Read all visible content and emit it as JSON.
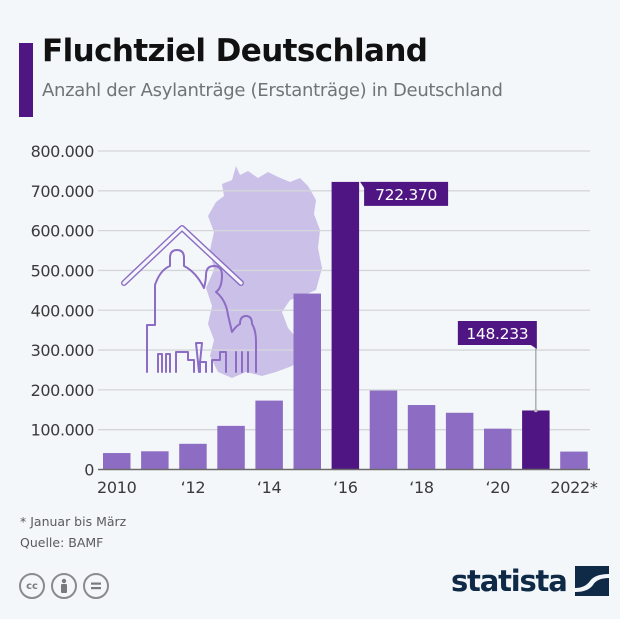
{
  "header": {
    "title": "Fluchtziel Deutschland",
    "subtitle": "Anzahl der Asylanträge (Erstanträge) in Deutschland"
  },
  "chart_data": {
    "type": "bar",
    "title": "Fluchtziel Deutschland",
    "subtitle": "Anzahl der Asylanträge (Erstanträge) in Deutschland",
    "xlabel": "",
    "ylabel": "",
    "ylim": [
      0,
      800000
    ],
    "grid": true,
    "yticks": [
      0,
      100000,
      200000,
      300000,
      400000,
      500000,
      600000,
      700000,
      800000
    ],
    "ytick_labels": [
      "0",
      "100.000",
      "200.000",
      "300.000",
      "400.000",
      "500.000",
      "600.000",
      "700.000",
      "800.000"
    ],
    "categories": [
      "2010",
      "2011",
      "2012",
      "2013",
      "2014",
      "2015",
      "2016",
      "2017",
      "2018",
      "2019",
      "2020",
      "2021",
      "2022"
    ],
    "xtick_labels": [
      "2010",
      "",
      "‘12",
      "",
      "‘14",
      "",
      "‘16",
      "",
      "‘18",
      "",
      "‘20",
      "",
      "2022*"
    ],
    "values": [
      41332,
      45741,
      64539,
      109580,
      173072,
      441899,
      722370,
      198317,
      161931,
      142509,
      102581,
      148233,
      45000
    ],
    "highlighted": [
      "2016",
      "2021"
    ],
    "data_labels": [
      {
        "category": "2016",
        "text": "722.370"
      },
      {
        "category": "2021",
        "text": "148.233"
      }
    ],
    "colors": {
      "bar": "#8d6cc4",
      "highlight": "#4e1583",
      "grid": "#d4d6da",
      "map": "#c7b9e6",
      "illustration": "#8d6cc4"
    }
  },
  "footer": {
    "note": "* Januar bis März",
    "source": "Quelle: BAMF",
    "license_icons": [
      "cc-icon",
      "attribution-icon",
      "no-derivatives-icon"
    ],
    "cc_text": "cc",
    "brand": "statista"
  }
}
